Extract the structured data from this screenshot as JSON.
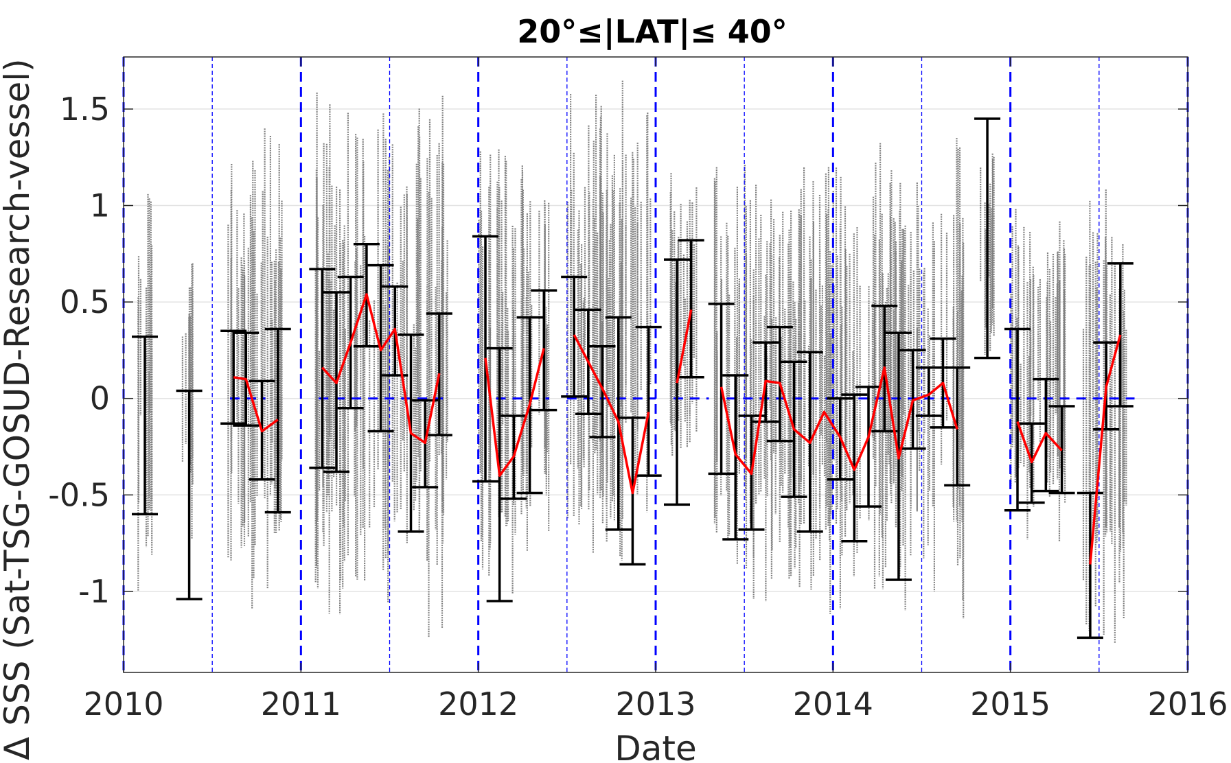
{
  "chart_data": {
    "type": "scatter",
    "title": "20°≤|LAT|≤ 40°",
    "xlabel": "Date",
    "ylabel": "Δ SSS (Sat-TSG-GOSUD-Research-vessel)",
    "xlim": [
      2010,
      2016
    ],
    "ylim": [
      -1.42,
      1.77
    ],
    "xticks": [
      2010,
      2011,
      2012,
      2013,
      2014,
      2015,
      2016
    ],
    "xtick_labels": [
      "2010",
      "2011",
      "2012",
      "2013",
      "2014",
      "2015",
      "2016"
    ],
    "yticks": [
      -1,
      -0.5,
      0,
      0.5,
      1,
      1.5
    ],
    "ytick_labels": [
      "-1",
      "-0.5",
      "0",
      "0.5",
      "1",
      "1.5"
    ],
    "grid": "horizontal",
    "legend": "none",
    "colors": {
      "points": "#808080",
      "mean_line": "#ff0000",
      "error_bars": "#000000",
      "reference": "#0000ff"
    },
    "reference_lines": {
      "zero_line_segments": [
        [
          2010.6,
          2010.8
        ],
        [
          2011.1,
          2011.8
        ],
        [
          2012.1,
          2012.4
        ],
        [
          2012.5,
          2013.0
        ],
        [
          2013.1,
          2013.3
        ],
        [
          2013.4,
          2014.7
        ],
        [
          2015.0,
          2015.7
        ]
      ],
      "year_lines": [
        2010,
        2011,
        2012,
        2013,
        2014,
        2015,
        2016
      ],
      "half_year_lines": [
        2010.5,
        2011.5,
        2012.5,
        2013.5,
        2014.5,
        2015.5
      ]
    },
    "error_bars": [
      {
        "x": 2010.12,
        "low": -0.6,
        "high": 0.32
      },
      {
        "x": 2010.37,
        "low": -1.04,
        "high": 0.04
      },
      {
        "x": 2010.62,
        "low": -0.13,
        "high": 0.35
      },
      {
        "x": 2010.69,
        "low": -0.14,
        "high": 0.34
      },
      {
        "x": 2010.78,
        "low": -0.42,
        "high": 0.09
      },
      {
        "x": 2010.87,
        "low": -0.59,
        "high": 0.36
      },
      {
        "x": 2011.12,
        "low": -0.36,
        "high": 0.67
      },
      {
        "x": 2011.2,
        "low": -0.38,
        "high": 0.55
      },
      {
        "x": 2011.28,
        "low": -0.05,
        "high": 0.63
      },
      {
        "x": 2011.37,
        "low": 0.27,
        "high": 0.8
      },
      {
        "x": 2011.45,
        "low": -0.17,
        "high": 0.69
      },
      {
        "x": 2011.53,
        "low": 0.12,
        "high": 0.58
      },
      {
        "x": 2011.62,
        "low": -0.69,
        "high": 0.33
      },
      {
        "x": 2011.7,
        "low": -0.46,
        "high": -0.01
      },
      {
        "x": 2011.78,
        "low": -0.19,
        "high": 0.44
      },
      {
        "x": 2012.04,
        "low": -0.43,
        "high": 0.84
      },
      {
        "x": 2012.12,
        "low": -1.05,
        "high": 0.26
      },
      {
        "x": 2012.2,
        "low": -0.52,
        "high": -0.09
      },
      {
        "x": 2012.29,
        "low": -0.49,
        "high": 0.42
      },
      {
        "x": 2012.37,
        "low": -0.06,
        "high": 0.56
      },
      {
        "x": 2012.54,
        "low": 0.01,
        "high": 0.63
      },
      {
        "x": 2012.62,
        "low": -0.08,
        "high": 0.46
      },
      {
        "x": 2012.7,
        "low": -0.2,
        "high": 0.27
      },
      {
        "x": 2012.79,
        "low": -0.68,
        "high": 0.42
      },
      {
        "x": 2012.87,
        "low": -0.86,
        "high": -0.1
      },
      {
        "x": 2012.96,
        "low": -0.4,
        "high": 0.37
      },
      {
        "x": 2013.12,
        "low": -0.55,
        "high": 0.72
      },
      {
        "x": 2013.2,
        "low": 0.11,
        "high": 0.82
      },
      {
        "x": 2013.37,
        "low": -0.39,
        "high": 0.49
      },
      {
        "x": 2013.45,
        "low": -0.73,
        "high": 0.12
      },
      {
        "x": 2013.54,
        "low": -0.68,
        "high": -0.09
      },
      {
        "x": 2013.62,
        "low": -0.12,
        "high": 0.29
      },
      {
        "x": 2013.7,
        "low": -0.22,
        "high": 0.37
      },
      {
        "x": 2013.78,
        "low": -0.51,
        "high": 0.19
      },
      {
        "x": 2013.87,
        "low": -0.69,
        "high": 0.24
      },
      {
        "x": 2014.04,
        "low": -0.42,
        "high": 0.0
      },
      {
        "x": 2014.12,
        "low": -0.74,
        "high": 0.02
      },
      {
        "x": 2014.2,
        "low": -0.56,
        "high": 0.06
      },
      {
        "x": 2014.29,
        "low": -0.17,
        "high": 0.48
      },
      {
        "x": 2014.37,
        "low": -0.94,
        "high": 0.34
      },
      {
        "x": 2014.45,
        "low": -0.26,
        "high": 0.25
      },
      {
        "x": 2014.54,
        "low": -0.09,
        "high": 0.16
      },
      {
        "x": 2014.62,
        "low": -0.15,
        "high": 0.31
      },
      {
        "x": 2014.7,
        "low": -0.45,
        "high": 0.16
      },
      {
        "x": 2014.87,
        "low": 0.21,
        "high": 1.45
      },
      {
        "x": 2015.04,
        "low": -0.58,
        "high": 0.36
      },
      {
        "x": 2015.12,
        "low": -0.54,
        "high": -0.13
      },
      {
        "x": 2015.2,
        "low": -0.48,
        "high": 0.1
      },
      {
        "x": 2015.29,
        "low": -0.49,
        "high": -0.04
      },
      {
        "x": 2015.45,
        "low": -1.24,
        "high": -0.49
      },
      {
        "x": 2015.54,
        "low": -0.16,
        "high": 0.29
      },
      {
        "x": 2015.62,
        "low": -0.04,
        "high": 0.7
      }
    ],
    "mean_series": [
      [
        {
          "x": 2010.62,
          "y": 0.11
        },
        {
          "x": 2010.69,
          "y": 0.1
        },
        {
          "x": 2010.78,
          "y": -0.17
        },
        {
          "x": 2010.87,
          "y": -0.11
        }
      ],
      [
        {
          "x": 2011.12,
          "y": 0.16
        },
        {
          "x": 2011.2,
          "y": 0.08
        },
        {
          "x": 2011.28,
          "y": 0.29
        },
        {
          "x": 2011.37,
          "y": 0.54
        },
        {
          "x": 2011.45,
          "y": 0.25
        },
        {
          "x": 2011.53,
          "y": 0.36
        },
        {
          "x": 2011.62,
          "y": -0.18
        },
        {
          "x": 2011.7,
          "y": -0.23
        },
        {
          "x": 2011.78,
          "y": 0.13
        }
      ],
      [
        {
          "x": 2012.04,
          "y": 0.21
        },
        {
          "x": 2012.12,
          "y": -0.4
        },
        {
          "x": 2012.2,
          "y": -0.3
        },
        {
          "x": 2012.29,
          "y": -0.03
        },
        {
          "x": 2012.37,
          "y": 0.26
        }
      ],
      [
        {
          "x": 2012.54,
          "y": 0.33
        },
        {
          "x": 2012.62,
          "y": 0.19
        },
        {
          "x": 2012.7,
          "y": 0.05
        },
        {
          "x": 2012.79,
          "y": -0.12
        },
        {
          "x": 2012.87,
          "y": -0.49
        },
        {
          "x": 2012.96,
          "y": -0.07
        }
      ],
      [
        {
          "x": 2013.12,
          "y": 0.08
        },
        {
          "x": 2013.2,
          "y": 0.46
        }
      ],
      [
        {
          "x": 2013.37,
          "y": 0.06
        },
        {
          "x": 2013.45,
          "y": -0.29
        },
        {
          "x": 2013.54,
          "y": -0.39
        },
        {
          "x": 2013.62,
          "y": 0.09
        },
        {
          "x": 2013.7,
          "y": 0.08
        },
        {
          "x": 2013.78,
          "y": -0.16
        },
        {
          "x": 2013.87,
          "y": -0.23
        },
        {
          "x": 2013.95,
          "y": -0.07
        },
        {
          "x": 2014.04,
          "y": -0.2
        },
        {
          "x": 2014.12,
          "y": -0.37
        },
        {
          "x": 2014.2,
          "y": -0.2
        },
        {
          "x": 2014.29,
          "y": 0.16
        },
        {
          "x": 2014.37,
          "y": -0.31
        },
        {
          "x": 2014.45,
          "y": -0.01
        },
        {
          "x": 2014.54,
          "y": 0.02
        },
        {
          "x": 2014.62,
          "y": 0.08
        },
        {
          "x": 2014.7,
          "y": -0.16
        }
      ],
      [
        {
          "x": 2015.04,
          "y": -0.12
        },
        {
          "x": 2015.12,
          "y": -0.33
        },
        {
          "x": 2015.2,
          "y": -0.18
        },
        {
          "x": 2015.29,
          "y": -0.27
        }
      ],
      [
        {
          "x": 2015.45,
          "y": -0.86
        },
        {
          "x": 2015.54,
          "y": 0.06
        },
        {
          "x": 2015.62,
          "y": 0.33
        }
      ]
    ],
    "scatter_clusters": [
      {
        "x0": 2010.08,
        "x1": 2010.16,
        "low": -1.2,
        "high": 1.25
      },
      {
        "x0": 2010.33,
        "x1": 2010.4,
        "low": -0.9,
        "high": 1.05
      },
      {
        "x0": 2010.59,
        "x1": 2010.91,
        "low": -1.1,
        "high": 1.45
      },
      {
        "x0": 2011.08,
        "x1": 2011.83,
        "low": -1.25,
        "high": 1.65
      },
      {
        "x0": 2012.0,
        "x1": 2012.41,
        "low": -1.1,
        "high": 1.45
      },
      {
        "x0": 2012.5,
        "x1": 2012.99,
        "low": -0.95,
        "high": 1.7
      },
      {
        "x0": 2013.08,
        "x1": 2013.24,
        "low": -0.55,
        "high": 1.2
      },
      {
        "x0": 2013.33,
        "x1": 2014.74,
        "low": -1.15,
        "high": 1.35
      },
      {
        "x0": 2014.83,
        "x1": 2014.91,
        "low": 0.05,
        "high": 1.45
      },
      {
        "x0": 2015.0,
        "x1": 2015.33,
        "low": -0.75,
        "high": 1.0
      },
      {
        "x0": 2015.41,
        "x1": 2015.66,
        "low": -1.3,
        "high": 1.2
      }
    ]
  }
}
